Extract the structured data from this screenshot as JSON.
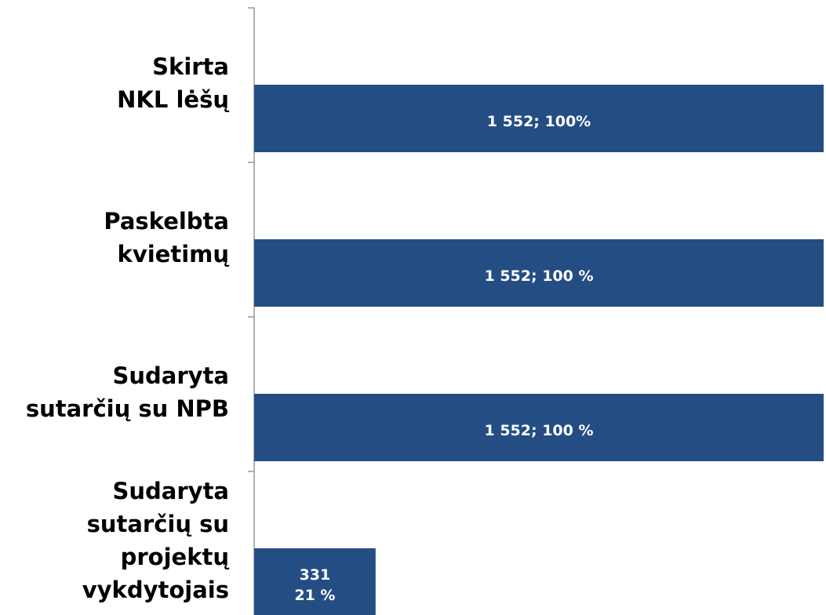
{
  "chart_data": {
    "type": "bar",
    "orientation": "horizontal",
    "categories": [
      "Skirta\nNKL lėšų",
      "Paskelbta\nkvietimų",
      "Sudaryta\nsutarčių su NPB",
      "Sudaryta\nsutarčių su\nprojektų\nvykdytojais"
    ],
    "values": [
      1552,
      1552,
      1552,
      331
    ],
    "value_labels": [
      "1 552; 100%",
      "1 552; 100 %",
      "1 552; 100 %",
      "331\n21 %"
    ],
    "color": "#244d84",
    "xlim": [
      0,
      1552
    ]
  }
}
